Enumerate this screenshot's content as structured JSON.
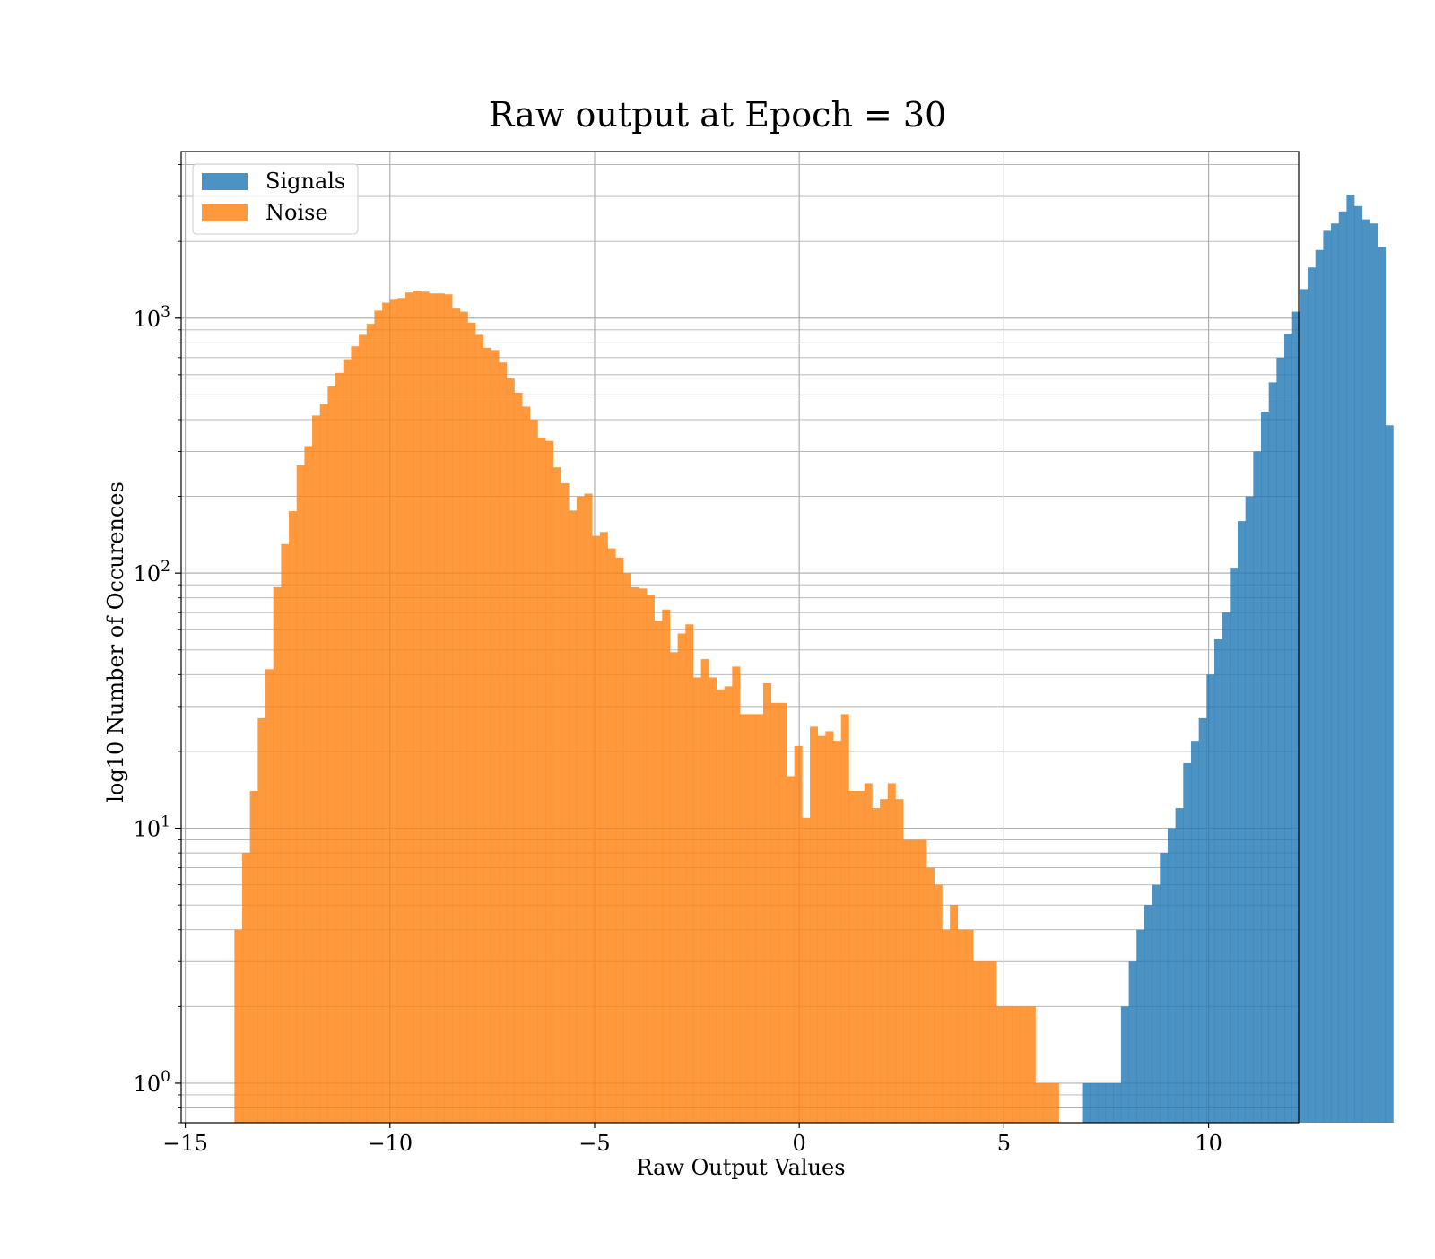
{
  "chart_data": {
    "type": "bar",
    "title": "Raw output at Epoch = 30",
    "xlabel": "Raw Output Values",
    "ylabel": "log10 Number of Occurences",
    "x_scale": "linear",
    "y_scale": "log",
    "xlim": [
      -15.1,
      12.2
    ],
    "ylim": [
      0.7,
      4500
    ],
    "x_ticks": [
      {
        "value": -15,
        "label": "−15"
      },
      {
        "value": -10,
        "label": "−10"
      },
      {
        "value": -5,
        "label": "−5"
      },
      {
        "value": 0,
        "label": "0"
      },
      {
        "value": 5,
        "label": "5"
      },
      {
        "value": 10,
        "label": "10"
      }
    ],
    "y_ticks": [
      {
        "value": 1,
        "base": "10",
        "exp": "0"
      },
      {
        "value": 10,
        "base": "10",
        "exp": "1"
      },
      {
        "value": 100,
        "base": "10",
        "exp": "2"
      },
      {
        "value": 1000,
        "base": "10",
        "exp": "3"
      }
    ],
    "grid": true,
    "grid_minor": true,
    "legend_position": "upper-left",
    "bin_start": -13.8,
    "bin_width": 0.19,
    "series": [
      {
        "name": "Signals",
        "color": "#1f77b4",
        "opacity": 0.8,
        "values": [
          0,
          0,
          0,
          0,
          0,
          0,
          0,
          0,
          0,
          0,
          0,
          0,
          0,
          0,
          0,
          0,
          0,
          0,
          0,
          0,
          0,
          0,
          0,
          0,
          0,
          0,
          0,
          0,
          0,
          0,
          0,
          0,
          0,
          0,
          0,
          0,
          0,
          0,
          0,
          0,
          0,
          0,
          0,
          0,
          0,
          0,
          0,
          0,
          0,
          0,
          0,
          0,
          0,
          0,
          0,
          0,
          0,
          0,
          0,
          0,
          0,
          0,
          0,
          0,
          0,
          0,
          0,
          0,
          0,
          0,
          0,
          0,
          0,
          0,
          0,
          0,
          0,
          0,
          0,
          0,
          0,
          0,
          0,
          0,
          0,
          0,
          0,
          0,
          0,
          0,
          0,
          0,
          0,
          0,
          0,
          0,
          0,
          0,
          0,
          0,
          0,
          0,
          0,
          0,
          0,
          0,
          0,
          0,
          0,
          1,
          1,
          1,
          1,
          1,
          2,
          3,
          4,
          5,
          6,
          8,
          10,
          12,
          18,
          22,
          27,
          40,
          55,
          70,
          105,
          160,
          200,
          300,
          430,
          560,
          700,
          870,
          1060,
          1300,
          1580,
          1850,
          2200,
          2350,
          2620,
          3050,
          2750,
          2440,
          2350,
          1900,
          380
        ]
      },
      {
        "name": "Noise",
        "color": "#ff7f0e",
        "opacity": 0.8,
        "values": [
          4,
          8,
          14,
          27,
          42,
          88,
          130,
          175,
          265,
          315,
          415,
          460,
          540,
          610,
          690,
          775,
          860,
          950,
          1070,
          1150,
          1190,
          1200,
          1260,
          1280,
          1270,
          1250,
          1250,
          1240,
          1090,
          1060,
          960,
          860,
          765,
          750,
          670,
          580,
          510,
          450,
          400,
          340,
          330,
          260,
          225,
          176,
          200,
          205,
          140,
          145,
          125,
          115,
          100,
          88,
          87,
          82,
          65,
          72,
          49,
          58,
          63,
          39,
          46,
          39,
          35,
          36,
          43,
          28,
          28,
          28,
          37,
          31,
          31,
          16,
          21,
          11,
          25,
          23,
          24,
          22,
          28,
          14,
          14,
          15,
          12,
          13,
          15,
          13,
          9,
          9,
          9,
          7,
          6,
          4,
          5,
          4,
          4,
          3,
          3,
          3,
          2,
          2,
          2,
          2,
          2,
          1,
          1,
          1,
          0,
          0,
          0,
          0,
          0,
          0,
          0,
          0,
          0,
          0,
          0,
          0,
          0,
          0,
          0,
          0,
          0,
          0,
          0,
          0,
          0,
          0,
          0,
          0,
          0,
          0,
          0,
          0,
          0,
          0,
          0,
          0,
          0,
          0,
          0,
          0,
          0,
          0,
          0,
          0,
          0,
          0,
          0,
          0,
          0,
          0,
          0
        ]
      }
    ]
  }
}
